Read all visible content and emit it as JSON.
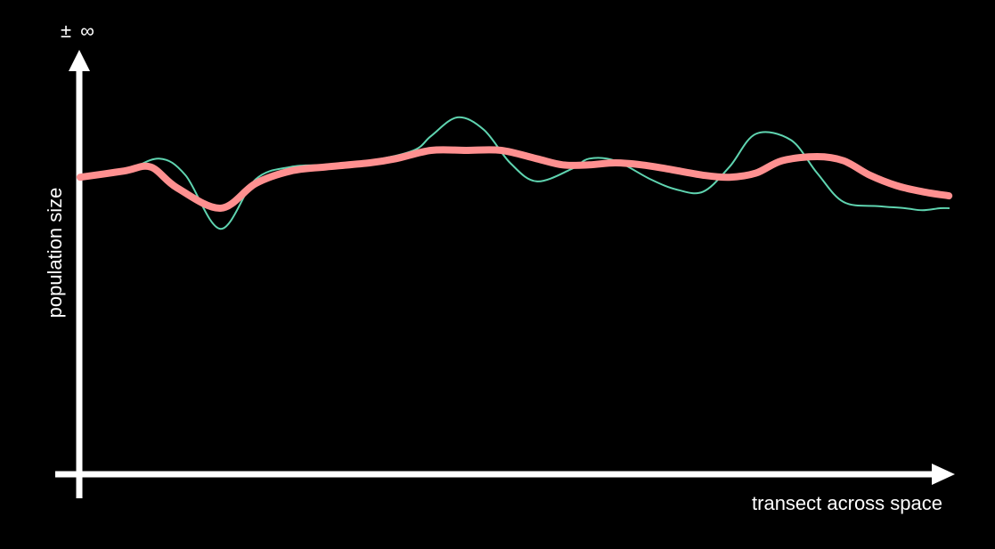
{
  "chart_data": {
    "type": "line",
    "ylabel": "population size",
    "xlabel": "transect across space",
    "y_top_label": "± ∞",
    "xlim": [
      0,
      100
    ],
    "ylim": [
      0,
      100
    ],
    "grid": false,
    "series": [
      {
        "color": "#5fd4b0",
        "style": "thin",
        "x": [
          0,
          5,
          9,
          12,
          16,
          20,
          24,
          28,
          33,
          38,
          40,
          43,
          46,
          49,
          52,
          56,
          58,
          61,
          65,
          68,
          71,
          74,
          77,
          81,
          84,
          87,
          91,
          94,
          96,
          98,
          99
        ],
        "y": [
          65,
          68,
          74,
          66,
          40,
          64,
          70,
          71,
          73,
          78,
          85,
          94,
          88,
          72,
          63,
          69,
          74,
          73,
          64,
          59,
          58,
          70,
          86,
          83,
          67,
          53,
          51,
          50,
          49,
          50,
          50
        ]
      },
      {
        "color": "#ff9090",
        "style": "thick",
        "x": [
          0,
          5,
          8,
          11,
          16,
          20,
          24,
          28,
          33,
          36,
          40,
          44,
          48,
          52,
          55,
          58,
          61,
          64,
          67,
          71,
          74,
          77,
          80,
          84,
          87,
          90,
          93,
          96,
          99
        ],
        "y": [
          65,
          68,
          70,
          60,
          50,
          62,
          68,
          70,
          72,
          74,
          78,
          78,
          78,
          74,
          71,
          71,
          72,
          71,
          69,
          66,
          65,
          67,
          73,
          75,
          73,
          66,
          61,
          58,
          56
        ]
      }
    ]
  }
}
